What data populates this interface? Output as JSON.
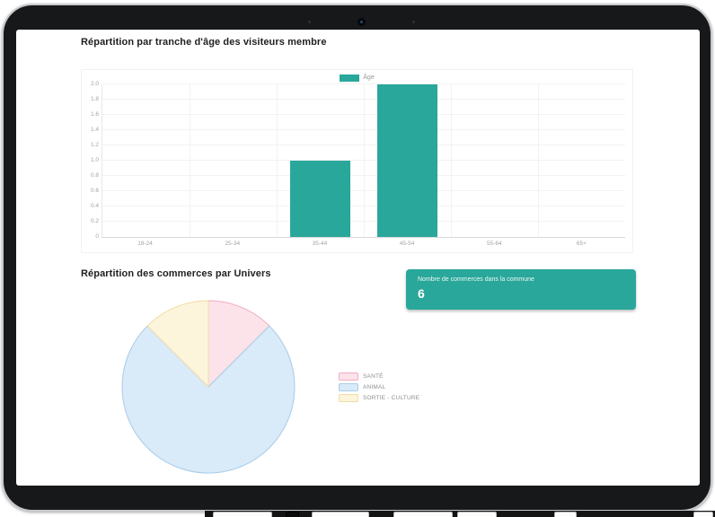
{
  "device": {
    "kind": "tablet-frame"
  },
  "colors": {
    "accent_teal": "#2aa79b",
    "bezel": "#17181a",
    "grid": "#f2f2f2",
    "axis_text": "#a3a3a3"
  },
  "bar_section": {
    "title": "Répartition par tranche d'âge des visiteurs membre"
  },
  "pie_section": {
    "title": "Répartition des commerces par Univers"
  },
  "stat_card": {
    "label": "Nombre de commerces dans la commune",
    "value": "6",
    "background": "#2aa79b"
  },
  "chart_data": [
    {
      "type": "bar",
      "title": "Répartition par tranche d'âge des visiteurs membre",
      "legend": "Âge",
      "legend_position": "top",
      "categories": [
        "18-24",
        "25-34",
        "35-44",
        "45-54",
        "55-64",
        "65+"
      ],
      "values": [
        0,
        0,
        1,
        2,
        0,
        0
      ],
      "xlabel": "",
      "ylabel": "",
      "ylim": [
        0,
        2
      ],
      "ytick_step": 0.2,
      "grid": true,
      "bar_color": "#2aa79b"
    },
    {
      "type": "pie",
      "title": "Répartition des commerces par Univers",
      "labels": [
        "SANTÉ",
        "ANIMAL",
        "SORTIE - CULTURE"
      ],
      "values": [
        1,
        6,
        1
      ],
      "fill_colors": [
        "#fce3ea",
        "#d9eaf8",
        "#fdf4dc"
      ],
      "border_colors": [
        "#f3aabf",
        "#a9cce9",
        "#f0dda4"
      ],
      "legend_position": "right",
      "start_angle_deg": 0,
      "direction": "clockwise"
    }
  ]
}
